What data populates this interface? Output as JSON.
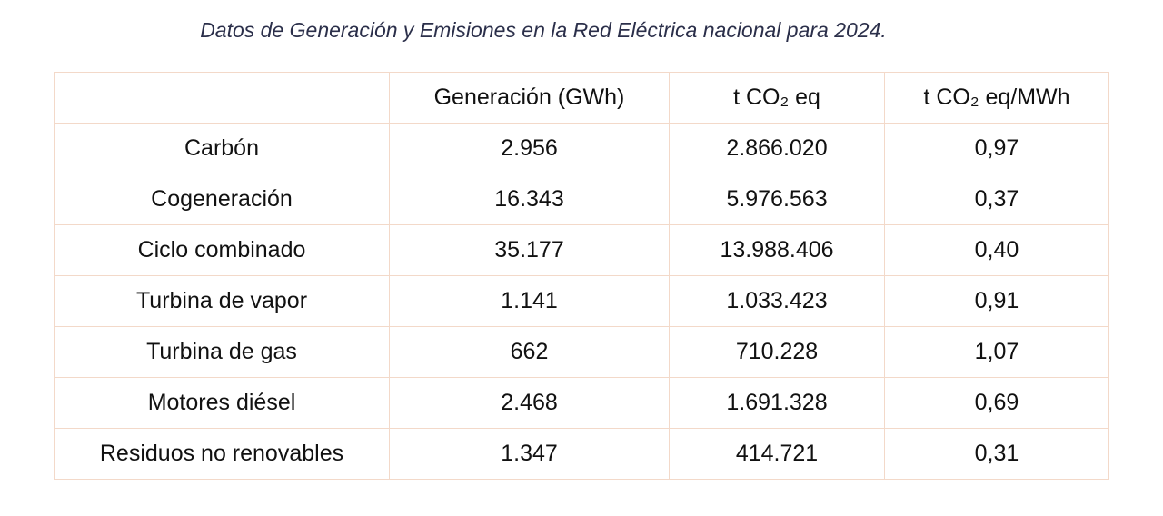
{
  "caption": "Datos de Generación y Emisiones en la Red Eléctrica nacional para 2024.",
  "table": {
    "headers": [
      "",
      "Generación (GWh)",
      "t CO₂ eq",
      "t CO₂ eq/MWh"
    ],
    "rows": [
      {
        "tecnologia": "Carbón",
        "generacion": "2.956",
        "emisiones": "2.866.020",
        "factor": "0,97"
      },
      {
        "tecnologia": "Cogeneración",
        "generacion": "16.343",
        "emisiones": "5.976.563",
        "factor": "0,37"
      },
      {
        "tecnologia": "Ciclo combinado",
        "generacion": "35.177",
        "emisiones": "13.988.406",
        "factor": "0,40"
      },
      {
        "tecnologia": "Turbina de vapor",
        "generacion": "1.141",
        "emisiones": "1.033.423",
        "factor": "0,91"
      },
      {
        "tecnologia": "Turbina de gas",
        "generacion": "662",
        "emisiones": "710.228",
        "factor": "1,07"
      },
      {
        "tecnologia": "Motores diésel",
        "generacion": "2.468",
        "emisiones": "1.691.328",
        "factor": "0,69"
      },
      {
        "tecnologia": "Residuos no renovables",
        "generacion": "1.347",
        "emisiones": "414.721",
        "factor": "0,31"
      }
    ]
  },
  "colors": {
    "border": "#f3d9c9",
    "caption_text": "#2b2f4a",
    "body_text": "#111111"
  }
}
